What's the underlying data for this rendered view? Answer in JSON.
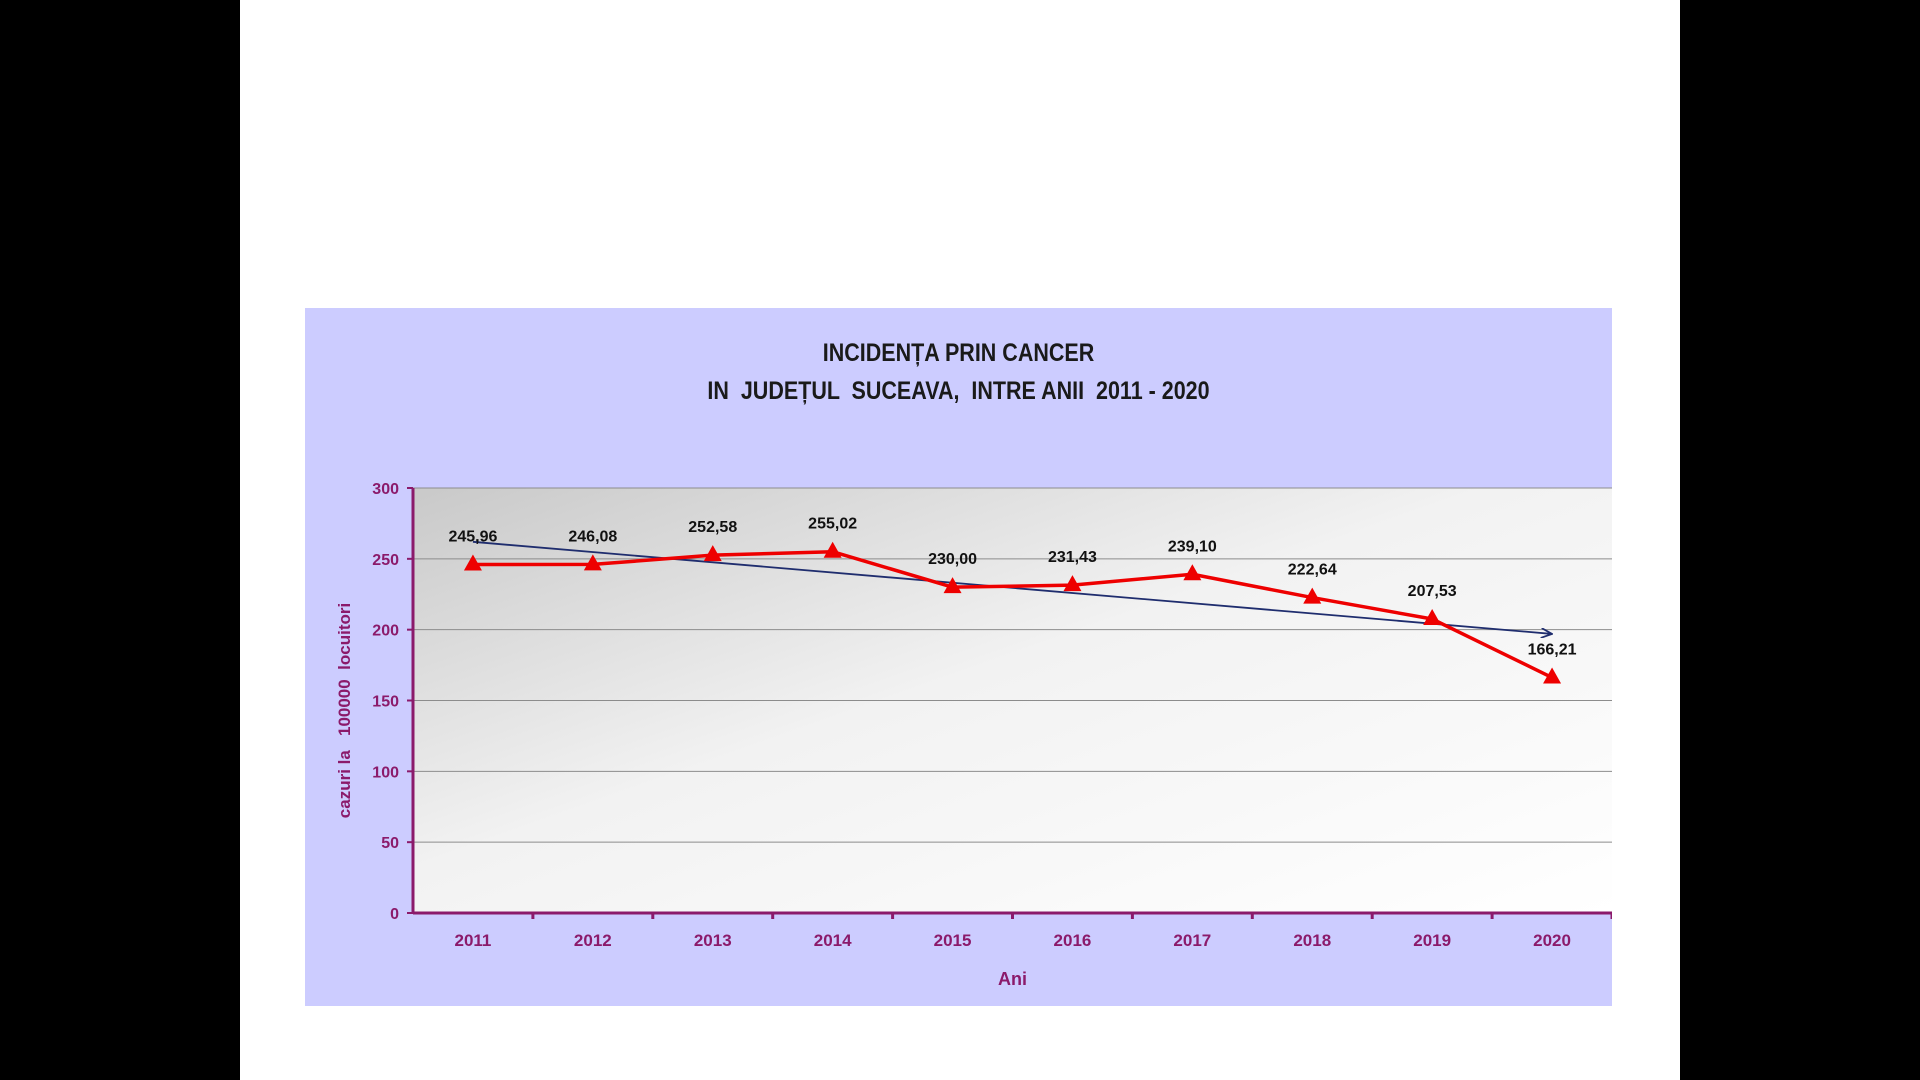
{
  "chart_data": {
    "type": "line",
    "title": "INCIDENȚA PRIN CANCER",
    "subtitle": "IN  JUDEȚUL  SUCEAVA,  INTRE ANII  2011 - 2020",
    "xlabel": "Ani",
    "ylabel": "cazuri la   100000  locuitori",
    "categories": [
      "2011",
      "2012",
      "2013",
      "2014",
      "2015",
      "2016",
      "2017",
      "2018",
      "2019",
      "2020"
    ],
    "series": [
      {
        "values": [
          245.96,
          246.08,
          252.58,
          255.02,
          230.0,
          231.43,
          239.1,
          222.64,
          207.53,
          166.21
        ],
        "labels": [
          "245,96",
          "246,08",
          "252,58",
          "255,02",
          "230,00",
          "231,43",
          "239,10",
          "222,64",
          "207,53",
          "166,21"
        ],
        "color": "#ee0000",
        "marker": "triangle"
      }
    ],
    "trendline": {
      "from": 262,
      "to": 197,
      "color": "#1f2d6e"
    },
    "ylim": [
      0,
      300
    ],
    "yticks": [
      0,
      50,
      100,
      150,
      200,
      250,
      300
    ],
    "grid": true,
    "axis_color": "#8b1a6b",
    "label_color": "#8b1a6b",
    "panel_color": "#ccccff"
  }
}
